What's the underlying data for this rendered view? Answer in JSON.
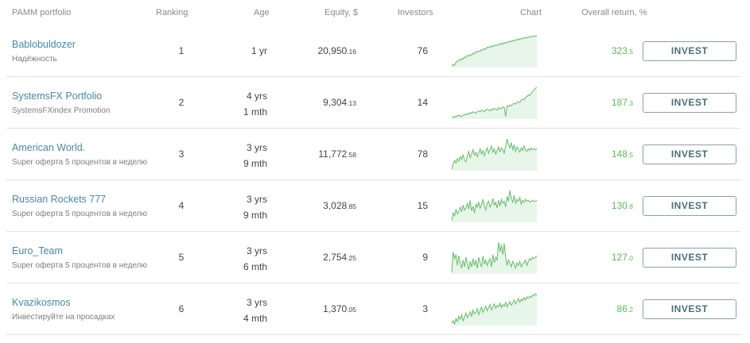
{
  "header": {
    "name": "PAMM portfolio",
    "ranking": "Ranking",
    "age": "Age",
    "equity": "Equity, $",
    "investors": "Investors",
    "chart": "Chart",
    "return": "Overall return, %"
  },
  "colors": {
    "accent_green": "#5cb85c",
    "link_blue": "#4a86a4",
    "chart_line": "#66bb6a",
    "chart_fill": "#e8f5e9"
  },
  "rows": [
    {
      "name": "Bablobuldozer",
      "desc": "Надёжность",
      "ranking": "1",
      "age_line1": "1 yr",
      "age_line2": "",
      "equity_int": "20,950",
      "equity_dec": ".16",
      "investors": "76",
      "return_int": "323",
      "return_dec": ".5",
      "button": "INVEST",
      "chart": [
        2,
        4,
        3,
        7,
        8,
        10,
        9,
        12,
        11,
        14,
        13,
        16,
        15,
        17,
        16,
        19,
        18,
        21,
        20,
        22,
        21,
        24,
        23,
        25,
        24,
        27,
        26,
        28,
        27,
        29,
        28,
        30,
        29,
        31,
        30,
        32,
        31,
        33,
        32,
        34,
        33,
        35,
        34,
        36,
        35,
        37,
        36,
        38,
        37,
        38,
        39,
        38,
        40,
        39,
        40,
        41,
        40,
        41,
        42,
        41,
        42
      ]
    },
    {
      "name": "SystemsFX Portfolio",
      "desc": "SystemsFXindex Promotion",
      "ranking": "2",
      "age_line1": "4 yrs",
      "age_line2": "1 mth",
      "equity_int": "9,304",
      "equity_dec": ".13",
      "investors": "14",
      "return_int": "187",
      "return_dec": ".3",
      "button": "INVEST",
      "chart": [
        5,
        6,
        5,
        7,
        6,
        8,
        7,
        6,
        8,
        9,
        8,
        10,
        9,
        11,
        10,
        12,
        11,
        10,
        12,
        13,
        12,
        14,
        13,
        12,
        14,
        15,
        14,
        13,
        15,
        14,
        16,
        15,
        14,
        17,
        16,
        15,
        18,
        17,
        6,
        19,
        18,
        20,
        19,
        21,
        22,
        21,
        23,
        24,
        23,
        26,
        27,
        26,
        29,
        30,
        32,
        31,
        34,
        36,
        38,
        40,
        41
      ]
    },
    {
      "name": "American World.",
      "desc": "Super оферта 5 процентов в неделю",
      "ranking": "3",
      "age_line1": "3 yrs",
      "age_line2": "9 mth",
      "equity_int": "11,772",
      "equity_dec": ".58",
      "investors": "78",
      "return_int": "148",
      "return_dec": ".5",
      "button": "INVEST",
      "chart": [
        2,
        8,
        12,
        9,
        14,
        11,
        16,
        13,
        18,
        12,
        10,
        17,
        22,
        15,
        19,
        24,
        18,
        21,
        16,
        20,
        25,
        19,
        23,
        17,
        22,
        26,
        20,
        24,
        28,
        21,
        25,
        19,
        23,
        27,
        22,
        26,
        24,
        20,
        28,
        36,
        30,
        26,
        32,
        24,
        29,
        22,
        27,
        25,
        21,
        26,
        23,
        28,
        24,
        22,
        25,
        23,
        26,
        24,
        25,
        24,
        25
      ]
    },
    {
      "name": "Russian Rockets 777",
      "desc": "Super оферта 5 процентов в неделю",
      "ranking": "4",
      "age_line1": "3 yrs",
      "age_line2": "9 mth",
      "equity_int": "3,028",
      "equity_dec": ".85",
      "investors": "15",
      "return_int": "130",
      "return_dec": ".8",
      "button": "INVEST",
      "chart": [
        4,
        12,
        9,
        16,
        11,
        14,
        18,
        13,
        20,
        15,
        17,
        22,
        16,
        25,
        14,
        19,
        12,
        21,
        18,
        23,
        17,
        20,
        26,
        19,
        15,
        22,
        24,
        18,
        21,
        27,
        20,
        23,
        17,
        25,
        19,
        26,
        22,
        24,
        18,
        29,
        24,
        35,
        27,
        23,
        30,
        22,
        26,
        24,
        28,
        21,
        25,
        23,
        26,
        24,
        25,
        23,
        24,
        25,
        24,
        24,
        25
      ]
    },
    {
      "name": "Euro_Team",
      "desc": "Super оферта 5 процентов в неделю",
      "ranking": "5",
      "age_line1": "3 yrs",
      "age_line2": "6 mth",
      "equity_int": "2,754",
      "equity_dec": ".25",
      "investors": "9",
      "return_int": "127",
      "return_dec": ".0",
      "button": "INVEST",
      "chart": [
        15,
        30,
        25,
        28,
        20,
        27,
        22,
        18,
        24,
        19,
        26,
        21,
        17,
        23,
        19,
        25,
        20,
        24,
        18,
        26,
        22,
        19,
        27,
        21,
        24,
        20,
        23,
        25,
        19,
        28,
        22,
        26,
        24,
        37,
        30,
        35,
        28,
        36,
        26,
        20,
        24,
        22,
        19,
        23,
        21,
        18,
        22,
        20,
        23,
        19,
        21,
        22,
        24,
        20,
        23,
        25,
        24,
        26,
        25,
        26,
        27
      ]
    },
    {
      "name": "Kvazikosmos",
      "desc": "Инвестируйте на просадках",
      "ranking": "6",
      "age_line1": "3 yrs",
      "age_line2": "4 mth",
      "equity_int": "1,370",
      "equity_dec": ".05",
      "investors": "3",
      "return_int": "86",
      "return_dec": ".2",
      "button": "INVEST",
      "chart": [
        3,
        6,
        2,
        9,
        5,
        12,
        8,
        14,
        6,
        11,
        16,
        10,
        13,
        18,
        12,
        20,
        15,
        17,
        22,
        14,
        19,
        24,
        17,
        21,
        25,
        19,
        23,
        27,
        20,
        24,
        28,
        22,
        26,
        24,
        29,
        23,
        27,
        25,
        30,
        24,
        28,
        31,
        26,
        29,
        33,
        28,
        31,
        35,
        30,
        34,
        32,
        36,
        33,
        37,
        35,
        38,
        36,
        40,
        38,
        41,
        39
      ]
    }
  ]
}
